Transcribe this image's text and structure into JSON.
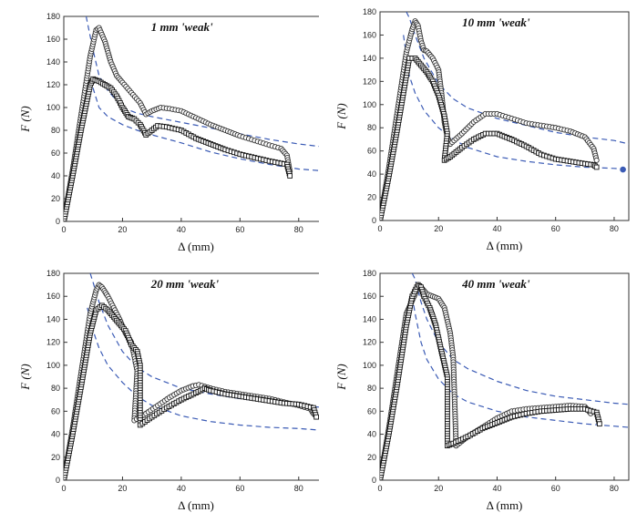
{
  "chart_data": [
    {
      "type": "scatter",
      "title": "1 mm 'weak'",
      "xlabel": "Δ (mm)",
      "ylabel": "F (N)",
      "xlim": [
        0,
        90
      ],
      "ylim": [
        0,
        180
      ],
      "xticks": [
        "0",
        "20",
        "40",
        "60",
        "80"
      ],
      "yticks": [
        "0",
        "20",
        "40",
        "60",
        "80",
        "100",
        "120",
        "140",
        "160",
        "180"
      ],
      "series": [
        {
          "marker": "circle-open",
          "x": [
            0,
            3,
            6,
            9,
            11,
            12,
            14,
            16,
            18,
            20,
            23,
            26,
            28,
            30,
            33,
            36,
            40,
            45,
            50,
            55,
            60,
            65,
            70,
            74,
            76,
            77
          ],
          "y": [
            0,
            45,
            95,
            145,
            168,
            170,
            158,
            140,
            128,
            122,
            113,
            104,
            94,
            97,
            100,
            99,
            97,
            91,
            85,
            80,
            75,
            71,
            67,
            64,
            58,
            44
          ]
        },
        {
          "marker": "square-open",
          "x": [
            0,
            3,
            6,
            9,
            10,
            12,
            14,
            16,
            18,
            20,
            22,
            24,
            26,
            28,
            30,
            32,
            35,
            40,
            45,
            50,
            55,
            60,
            65,
            70,
            74,
            76,
            77
          ],
          "y": [
            0,
            40,
            82,
            120,
            125,
            123,
            120,
            117,
            110,
            100,
            92,
            90,
            85,
            76,
            80,
            84,
            83,
            80,
            73,
            68,
            63,
            59,
            56,
            53,
            51,
            50,
            40
          ]
        }
      ],
      "reference_curves": [
        {
          "style": "dashed",
          "x": [
            7,
            8,
            10,
            12,
            15,
            20,
            25,
            30,
            40,
            50,
            60,
            70,
            80,
            90
          ],
          "y": [
            188,
            175,
            150,
            128,
            115,
            100,
            95,
            92,
            87,
            82,
            77,
            72,
            68,
            65
          ]
        },
        {
          "style": "dashed",
          "x": [
            9,
            12,
            15,
            20,
            25,
            30,
            40,
            50,
            60,
            70,
            80,
            90
          ],
          "y": [
            125,
            100,
            92,
            85,
            80,
            76,
            69,
            61,
            55,
            50,
            46,
            44
          ]
        }
      ]
    },
    {
      "type": "scatter",
      "title": "10 mm 'weak'",
      "xlabel": "Δ (mm)",
      "ylabel": "F (N)",
      "xlim": [
        0,
        85
      ],
      "ylim": [
        0,
        180
      ],
      "xticks": [
        "0",
        "20",
        "40",
        "60",
        "80"
      ],
      "yticks": [
        "0",
        "20",
        "40",
        "60",
        "80",
        "100",
        "120",
        "140",
        "160",
        "180"
      ],
      "series": [
        {
          "marker": "circle-open",
          "x": [
            0,
            3,
            6,
            9,
            11,
            12,
            13,
            14,
            15,
            16,
            18,
            20,
            21,
            22,
            23,
            24,
            28,
            32,
            36,
            40,
            45,
            50,
            55,
            60,
            65,
            70,
            73,
            74
          ],
          "y": [
            0,
            45,
            95,
            145,
            165,
            172,
            168,
            155,
            147,
            146,
            140,
            130,
            110,
            85,
            72,
            66,
            75,
            85,
            92,
            92,
            88,
            84,
            82,
            80,
            77,
            72,
            62,
            52
          ]
        },
        {
          "marker": "square-open",
          "x": [
            0,
            3,
            6,
            9,
            10,
            12,
            14,
            16,
            18,
            20,
            22,
            23,
            22,
            24,
            28,
            32,
            36,
            40,
            45,
            50,
            55,
            60,
            65,
            70,
            73,
            74
          ],
          "y": [
            0,
            38,
            80,
            125,
            140,
            140,
            134,
            128,
            120,
            108,
            90,
            75,
            52,
            55,
            63,
            70,
            75,
            75,
            70,
            64,
            57,
            53,
            51,
            49,
            48,
            46
          ]
        }
      ],
      "reference_curves": [
        {
          "style": "dashed",
          "x": [
            9,
            10,
            12,
            15,
            20,
            25,
            30,
            40,
            50,
            60,
            70,
            80,
            85
          ],
          "y": [
            180,
            175,
            160,
            140,
            118,
            105,
            97,
            88,
            82,
            76,
            72,
            69,
            66
          ]
        },
        {
          "style": "dashed",
          "x": [
            8,
            10,
            12,
            15,
            20,
            25,
            30,
            40,
            50,
            60,
            70,
            80,
            85
          ],
          "y": [
            160,
            125,
            110,
            95,
            80,
            70,
            63,
            55,
            51,
            48,
            46,
            45,
            44
          ]
        }
      ],
      "extra_points": [
        {
          "x": 83,
          "y": 44
        }
      ]
    },
    {
      "type": "scatter",
      "title": "20 mm 'weak'",
      "xlabel": "Δ (mm)",
      "ylabel": "F (N)",
      "xlim": [
        0,
        90
      ],
      "ylim": [
        0,
        180
      ],
      "xticks": [
        "0",
        "20",
        "40",
        "60",
        "80"
      ],
      "yticks": [
        "0",
        "20",
        "40",
        "60",
        "80",
        "100",
        "120",
        "140",
        "160",
        "180"
      ],
      "series": [
        {
          "marker": "circle-open",
          "x": [
            0,
            3,
            6,
            9,
            11,
            12,
            13,
            15,
            17,
            19,
            21,
            23,
            24,
            25,
            24,
            28,
            32,
            36,
            40,
            44,
            46,
            50,
            55,
            60,
            65,
            70,
            75,
            80,
            84,
            85
          ],
          "y": [
            0,
            45,
            95,
            145,
            165,
            170,
            168,
            160,
            150,
            140,
            128,
            120,
            108,
            95,
            52,
            58,
            65,
            72,
            78,
            82,
            83,
            80,
            77,
            75,
            73,
            71,
            68,
            65,
            62,
            58
          ]
        },
        {
          "marker": "square-open",
          "x": [
            0,
            3,
            6,
            9,
            11,
            13,
            15,
            17,
            19,
            21,
            23,
            25,
            26,
            26,
            30,
            35,
            40,
            45,
            48,
            50,
            55,
            60,
            65,
            70,
            75,
            80,
            85,
            86
          ],
          "y": [
            0,
            40,
            83,
            128,
            148,
            152,
            148,
            142,
            136,
            130,
            118,
            112,
            100,
            48,
            55,
            63,
            70,
            76,
            80,
            78,
            75,
            73,
            71,
            69,
            67,
            66,
            63,
            55
          ]
        }
      ],
      "reference_curves": [
        {
          "style": "dashed",
          "x": [
            9,
            10,
            12,
            15,
            20,
            25,
            30,
            40,
            50,
            60,
            70,
            80,
            90
          ],
          "y": [
            180,
            172,
            155,
            135,
            112,
            98,
            90,
            80,
            75,
            71,
            68,
            65,
            63
          ]
        },
        {
          "style": "dashed",
          "x": [
            8,
            10,
            12,
            15,
            20,
            25,
            30,
            40,
            50,
            60,
            70,
            80,
            90
          ],
          "y": [
            150,
            130,
            115,
            100,
            85,
            73,
            65,
            56,
            51,
            48,
            46,
            45,
            43
          ]
        }
      ]
    },
    {
      "type": "scatter",
      "title": "40 mm 'weak'",
      "xlabel": "Δ (mm)",
      "ylabel": "F (N)",
      "xlim": [
        0,
        85
      ],
      "ylim": [
        0,
        180
      ],
      "xticks": [
        "0",
        "20",
        "40",
        "60",
        "80"
      ],
      "yticks": [
        "0",
        "20",
        "40",
        "60",
        "80",
        "100",
        "120",
        "140",
        "160",
        "180"
      ],
      "series": [
        {
          "marker": "circle-open",
          "x": [
            0,
            3,
            6,
            9,
            12,
            13,
            14,
            16,
            18,
            20,
            22,
            24,
            25,
            26,
            30,
            35,
            40,
            45,
            50,
            55,
            60,
            65,
            70,
            72
          ],
          "y": [
            0,
            45,
            95,
            145,
            162,
            170,
            168,
            162,
            160,
            158,
            150,
            128,
            107,
            30,
            38,
            46,
            54,
            60,
            62,
            63,
            64,
            65,
            64,
            58
          ]
        },
        {
          "marker": "square-open",
          "x": [
            0,
            3,
            6,
            9,
            11,
            13,
            14,
            15,
            17,
            19,
            21,
            23,
            23,
            25,
            30,
            35,
            40,
            45,
            50,
            55,
            60,
            65,
            70,
            74,
            75
          ],
          "y": [
            0,
            40,
            85,
            135,
            160,
            170,
            168,
            160,
            150,
            135,
            112,
            90,
            30,
            32,
            38,
            45,
            50,
            55,
            58,
            60,
            61,
            62,
            62,
            59,
            49
          ]
        }
      ],
      "reference_curves": [
        {
          "style": "dashed",
          "x": [
            11,
            12,
            14,
            16,
            20,
            25,
            30,
            40,
            50,
            60,
            70,
            80,
            85
          ],
          "y": [
            180,
            175,
            155,
            140,
            120,
            105,
            97,
            86,
            78,
            73,
            70,
            67,
            66
          ]
        },
        {
          "style": "dashed",
          "x": [
            11,
            12,
            14,
            16,
            20,
            25,
            30,
            40,
            50,
            60,
            70,
            80,
            85
          ],
          "y": [
            160,
            145,
            120,
            105,
            88,
            75,
            68,
            60,
            55,
            52,
            49,
            47,
            46
          ]
        }
      ]
    }
  ]
}
